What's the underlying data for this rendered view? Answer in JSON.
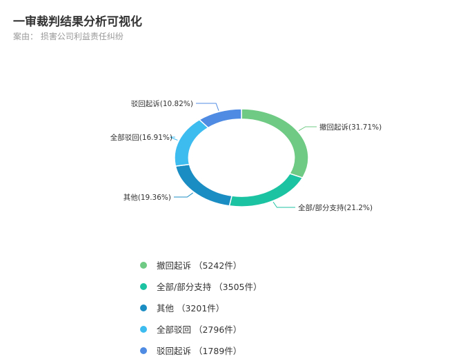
{
  "header": {
    "title": "一审裁判结果分析可视化",
    "subtitle": "案由： 损害公司利益责任纠纷"
  },
  "chart_data": {
    "type": "pie",
    "variant": "donut",
    "categories": [
      "撤回起诉",
      "全部/部分支持",
      "其他",
      "全部驳回",
      "驳回起诉"
    ],
    "values": [
      5242,
      3505,
      3201,
      2796,
      1789
    ],
    "percent_labels": [
      "撤回起诉(31.71%)",
      "全部/部分支持(21.2%)",
      "其他(19.36%)",
      "全部驳回(16.91%)",
      "驳回起诉(10.82%)"
    ],
    "legend_labels": [
      "撤回起诉 （5242件）",
      "全部/部分支持 （3505件）",
      "其他 （3201件）",
      "全部驳回 （2796件）",
      "驳回起诉 （1789件）"
    ],
    "colors": [
      "#6fca83",
      "#1cc3a2",
      "#1a8dc3",
      "#3dbcf0",
      "#4f8be2"
    ],
    "legend_position": "bottom"
  }
}
